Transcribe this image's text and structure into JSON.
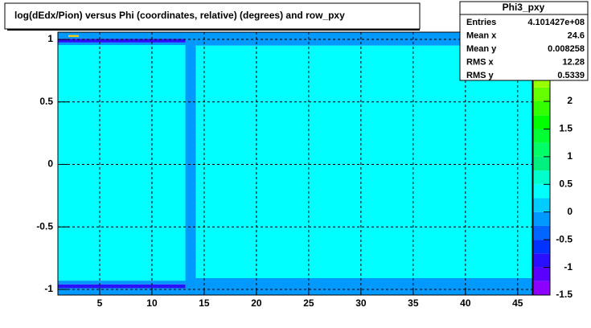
{
  "chart_data": {
    "type": "heatmap",
    "title": "log(dEdx/Pion) versus Phi (coordinates, relative) (degrees) and row_pxy",
    "xlim": [
      1,
      46.4
    ],
    "ylim": [
      -1.045,
      1.058
    ],
    "xticks": [
      5,
      10,
      15,
      20,
      25,
      30,
      35,
      40,
      45
    ],
    "yticks": [
      1,
      0.5,
      0,
      -0.5,
      -1
    ],
    "zlim": [
      -1.5,
      3.25
    ],
    "zticks": [
      2,
      1.5,
      1,
      0.5,
      0,
      -0.5,
      -1,
      -1.5
    ],
    "grid": true,
    "palette": [
      "#8b00ff",
      "#5a00ff",
      "#2a10ff",
      "#0033ff",
      "#0066ff",
      "#0099ff",
      "#00ccff",
      "#00ffff",
      "#00ffcc",
      "#00f080",
      "#00ff66",
      "#00ff33",
      "#00ff00",
      "#33ff00",
      "#66ff00",
      "#99ff00",
      "#ccff00",
      "#ffff00",
      "#ffcc00"
    ],
    "cells": [
      {
        "x": [
          1,
          13.2
        ],
        "y": [
          1.005,
          1.058
        ],
        "z": -0.1
      },
      {
        "x": [
          1,
          13.2
        ],
        "y": [
          0.975,
          1.005
        ],
        "z": -0.9
      },
      {
        "x": [
          1,
          13.2
        ],
        "y": [
          0.955,
          0.975
        ],
        "z": -0.1
      },
      {
        "x": [
          1,
          13.2
        ],
        "y": [
          -0.93,
          0.955
        ],
        "z": 0.4
      },
      {
        "x": [
          1,
          13.2
        ],
        "y": [
          -0.96,
          -0.93
        ],
        "z": -0.1
      },
      {
        "x": [
          1,
          13.2
        ],
        "y": [
          -0.99,
          -0.96
        ],
        "z": -0.9
      },
      {
        "x": [
          1,
          13.2
        ],
        "y": [
          -1.045,
          -0.99
        ],
        "z": -0.1
      },
      {
        "x": [
          2,
          3
        ],
        "y": [
          1.02,
          1.035
        ],
        "z": 3.2
      },
      {
        "x": [
          13.2,
          14.2
        ],
        "y": [
          -1.045,
          1.058
        ],
        "z": -0.1
      },
      {
        "x": [
          14.2,
          46.4
        ],
        "y": [
          0.95,
          1.058
        ],
        "z": -0.1
      },
      {
        "x": [
          14.2,
          46.4
        ],
        "y": [
          -0.91,
          0.95
        ],
        "z": 0.4
      },
      {
        "x": [
          14.2,
          46.4
        ],
        "y": [
          -1.045,
          -0.91
        ],
        "z": -0.1
      }
    ],
    "stats": {
      "title": "Phi3_pxy",
      "rows": [
        [
          "Entries",
          "4.101427e+08"
        ],
        [
          "Mean x",
          "24.6"
        ],
        [
          "Mean y",
          "0.008258"
        ],
        [
          "RMS x",
          "12.28"
        ],
        [
          "RMS y",
          "0.5339"
        ]
      ]
    }
  }
}
